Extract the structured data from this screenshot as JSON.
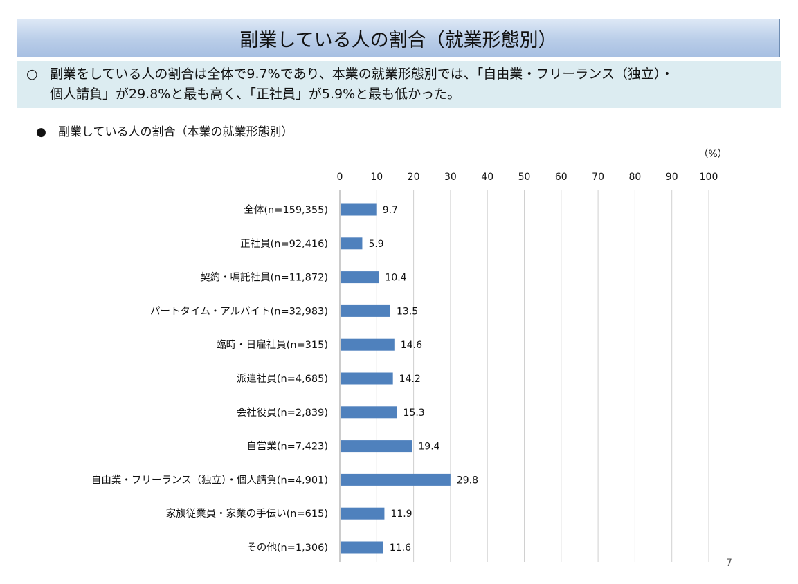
{
  "header": {
    "title": "副業している人の割合（就業形態別）"
  },
  "summary": {
    "bullet": "○",
    "line1": "副業をしている人の割合は全体で9.7%であり、本業の就業形態別では、「自由業・フリーランス（独立）・",
    "line2": "個人請負」が29.8%と最も高く、「正社員」が5.9%と最も低かった。"
  },
  "subtitle": {
    "bullet": "●",
    "text": "副業している人の割合（本業の就業形態別）"
  },
  "page_number": "7",
  "chart_data": {
    "type": "bar",
    "orientation": "horizontal",
    "title": "副業している人の割合（本業の就業形態別）",
    "unit_label": "（%）",
    "xlim": [
      0,
      100
    ],
    "ticks": [
      0,
      10,
      20,
      30,
      40,
      50,
      60,
      70,
      80,
      90,
      100
    ],
    "grid": true,
    "bar_color": "#4f81bd",
    "categories": [
      "全体(n=159,355)",
      "正社員(n=92,416)",
      "契約・嘱託社員(n=11,872)",
      "パートタイム・アルバイト(n=32,983)",
      "臨時・日雇社員(n=315)",
      "派遣社員(n=4,685)",
      "会社役員(n=2,839)",
      "自営業(n=7,423)",
      "自由業・フリーランス（独立）・個人請負(n=4,901)",
      "家族従業員・家業の手伝い(n=615)",
      "その他(n=1,306)"
    ],
    "values": [
      9.7,
      5.9,
      10.4,
      13.5,
      14.6,
      14.2,
      15.3,
      19.4,
      29.8,
      11.9,
      11.6
    ]
  }
}
